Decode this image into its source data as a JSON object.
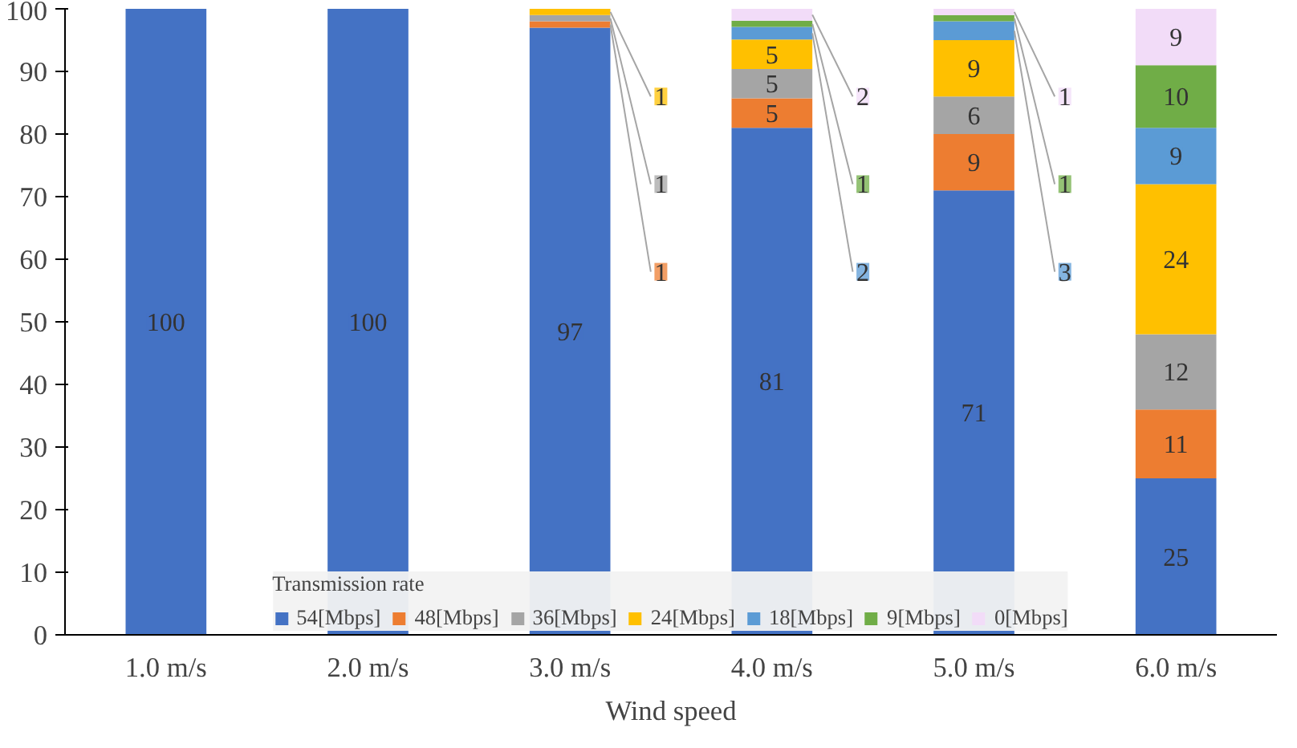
{
  "chart_data": {
    "type": "bar",
    "stacked": true,
    "xlabel": "Wind speed",
    "legend_title": "Transmission rate",
    "legend": "bottom",
    "grid": false,
    "categories": [
      "1.0 m/s",
      "2.0 m/s",
      "3.0 m/s",
      "4.0 m/s",
      "5.0 m/s",
      "6.0 m/s"
    ],
    "ylim": [
      0,
      100
    ],
    "yticks": [
      0,
      10,
      20,
      30,
      40,
      50,
      60,
      70,
      80,
      90,
      100
    ],
    "series": [
      {
        "name": "54[Mbps]",
        "color": "#4472c4",
        "values": [
          100,
          100,
          97,
          81,
          71,
          25
        ],
        "value_labels": [
          "100",
          "100",
          "97",
          "81",
          "71",
          "25"
        ]
      },
      {
        "name": "48[Mbps]",
        "color": "#ed7d31",
        "values": [
          0,
          0,
          1,
          4.7,
          9,
          11
        ],
        "value_labels": [
          null,
          null,
          "1",
          "5",
          "9",
          "11"
        ]
      },
      {
        "name": "36[Mbps]",
        "color": "#a5a5a5",
        "values": [
          0,
          0,
          1,
          4.7,
          6,
          12
        ],
        "value_labels": [
          null,
          null,
          "1",
          "5",
          "6",
          "12"
        ]
      },
      {
        "name": "24[Mbps]",
        "color": "#ffc000",
        "values": [
          0,
          0,
          1,
          4.7,
          9,
          24
        ],
        "value_labels": [
          null,
          null,
          "1",
          "5",
          "9",
          "24"
        ]
      },
      {
        "name": "18[Mbps]",
        "color": "#5b9bd5",
        "values": [
          0,
          0,
          0,
          2,
          3,
          9
        ],
        "value_labels": [
          null,
          null,
          null,
          "2",
          "3",
          "9"
        ]
      },
      {
        "name": "9[Mbps]",
        "color": "#70ad47",
        "values": [
          0,
          0,
          0,
          1,
          1,
          10
        ],
        "value_labels": [
          null,
          null,
          null,
          "1",
          "1",
          "10"
        ]
      },
      {
        "name": "0[Mbps]",
        "color": "#f2dcf8",
        "values": [
          0,
          0,
          0,
          1.9,
          1,
          9
        ],
        "value_labels": [
          null,
          null,
          null,
          "2",
          "1",
          "9"
        ]
      }
    ]
  }
}
